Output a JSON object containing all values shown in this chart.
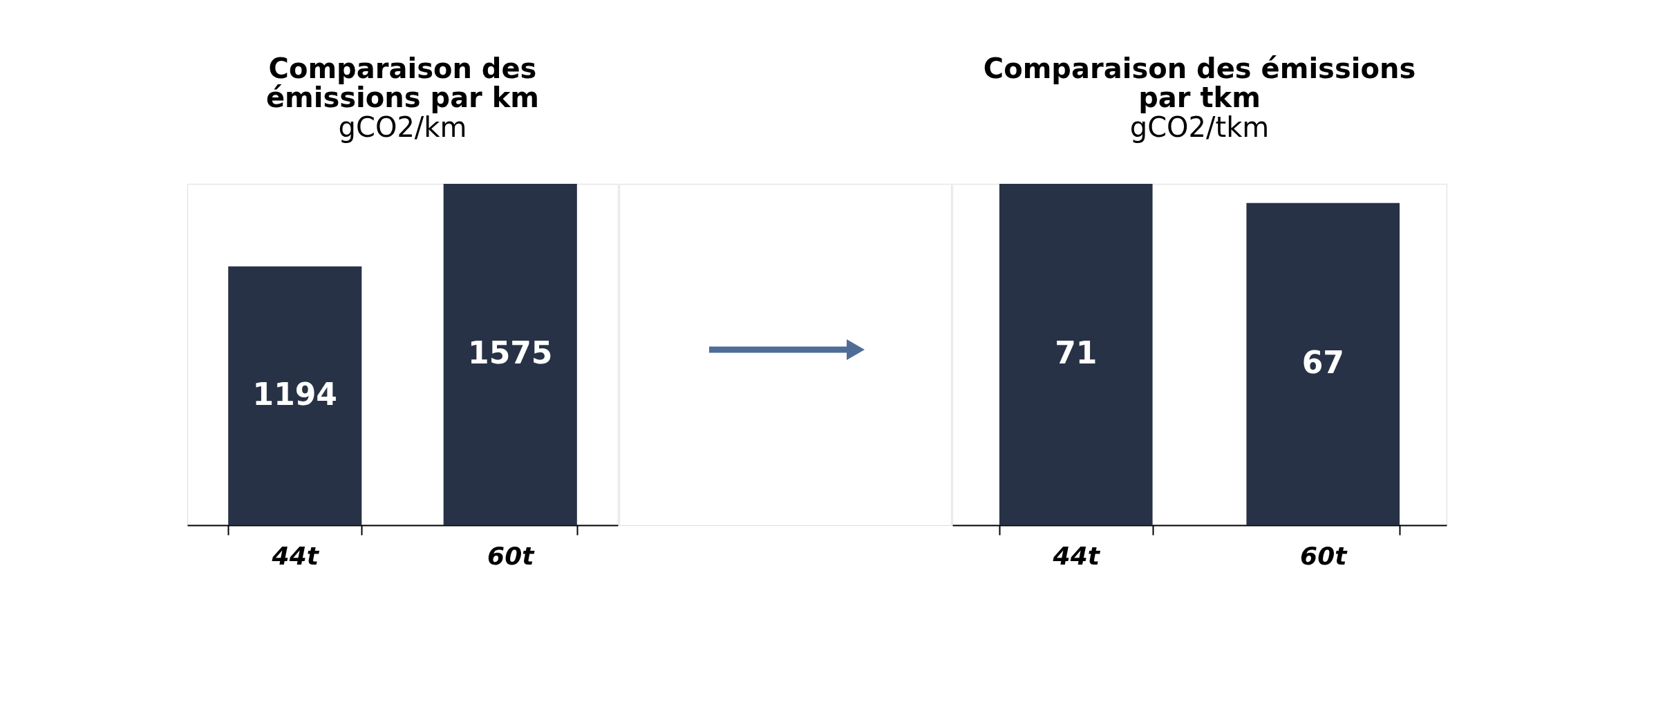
{
  "chart_data": [
    {
      "type": "bar",
      "title": "Comparaison des\némissions par km",
      "subtitle": "gCO2/km",
      "categories": [
        "44t",
        "60t"
      ],
      "values": [
        1194,
        1575
      ],
      "color": "#283246",
      "data_labels": true,
      "tick_labels": "x"
    },
    {
      "type": "bar",
      "title": "Comparaison des émissions\npar tkm",
      "subtitle": "gCO2/tkm",
      "categories": [
        "44t",
        "60t"
      ],
      "values": [
        71,
        67
      ],
      "color": "#283246",
      "data_labels": true,
      "tick_labels": "x"
    }
  ]
}
